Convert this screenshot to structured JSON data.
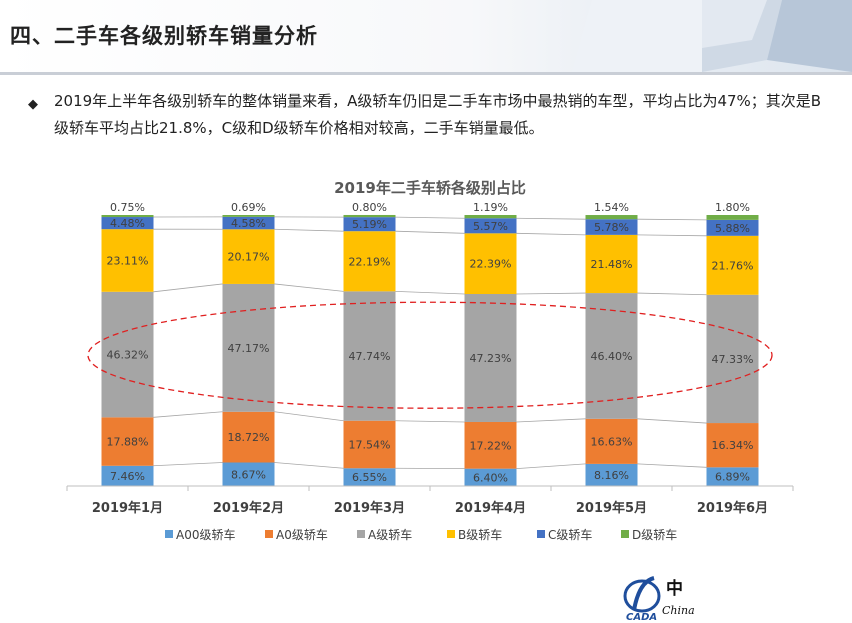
{
  "page": {
    "title": "四、二手车各级别轿车销量分析",
    "bullet": "2019年上半年各级别轿车的整体销量来看，A级轿车仍旧是二手车市场中最热销的车型，平均占比为47%；其次是B级轿车平均占比21.8%，C级和D级轿车价格相对较高，二手车销量最低。"
  },
  "logo": {
    "text": "CADA",
    "cn_char": "中",
    "script": "China"
  },
  "chart_data": {
    "type": "bar",
    "stacked": true,
    "title": "2019年二手车轿各级别占比",
    "categories": [
      "2019年1月",
      "2019年2月",
      "2019年3月",
      "2019年4月",
      "2019年5月",
      "2019年6月"
    ],
    "series": [
      {
        "name": "A00级轿车",
        "color": "#5b9bd5",
        "values": [
          7.46,
          8.67,
          6.55,
          6.4,
          8.16,
          6.89
        ]
      },
      {
        "name": "A0级轿车",
        "color": "#ed7d31",
        "values": [
          17.88,
          18.72,
          17.54,
          17.22,
          16.63,
          16.34
        ]
      },
      {
        "name": "A级轿车",
        "color": "#a5a5a5",
        "values": [
          46.32,
          47.17,
          47.74,
          47.23,
          46.4,
          47.33
        ]
      },
      {
        "name": "B级轿车",
        "color": "#ffc000",
        "values": [
          23.11,
          20.17,
          22.19,
          22.39,
          21.48,
          21.76
        ]
      },
      {
        "name": "C级轿车",
        "color": "#4472c4",
        "values": [
          4.48,
          4.58,
          5.19,
          5.57,
          5.78,
          5.88
        ]
      },
      {
        "name": "D级轿车",
        "color": "#70ad47",
        "values": [
          0.75,
          0.69,
          0.8,
          1.19,
          1.54,
          1.8
        ]
      }
    ],
    "ylim": [
      0,
      100
    ],
    "legend": "bottom",
    "grid": false,
    "highlight": "A级轿车"
  }
}
